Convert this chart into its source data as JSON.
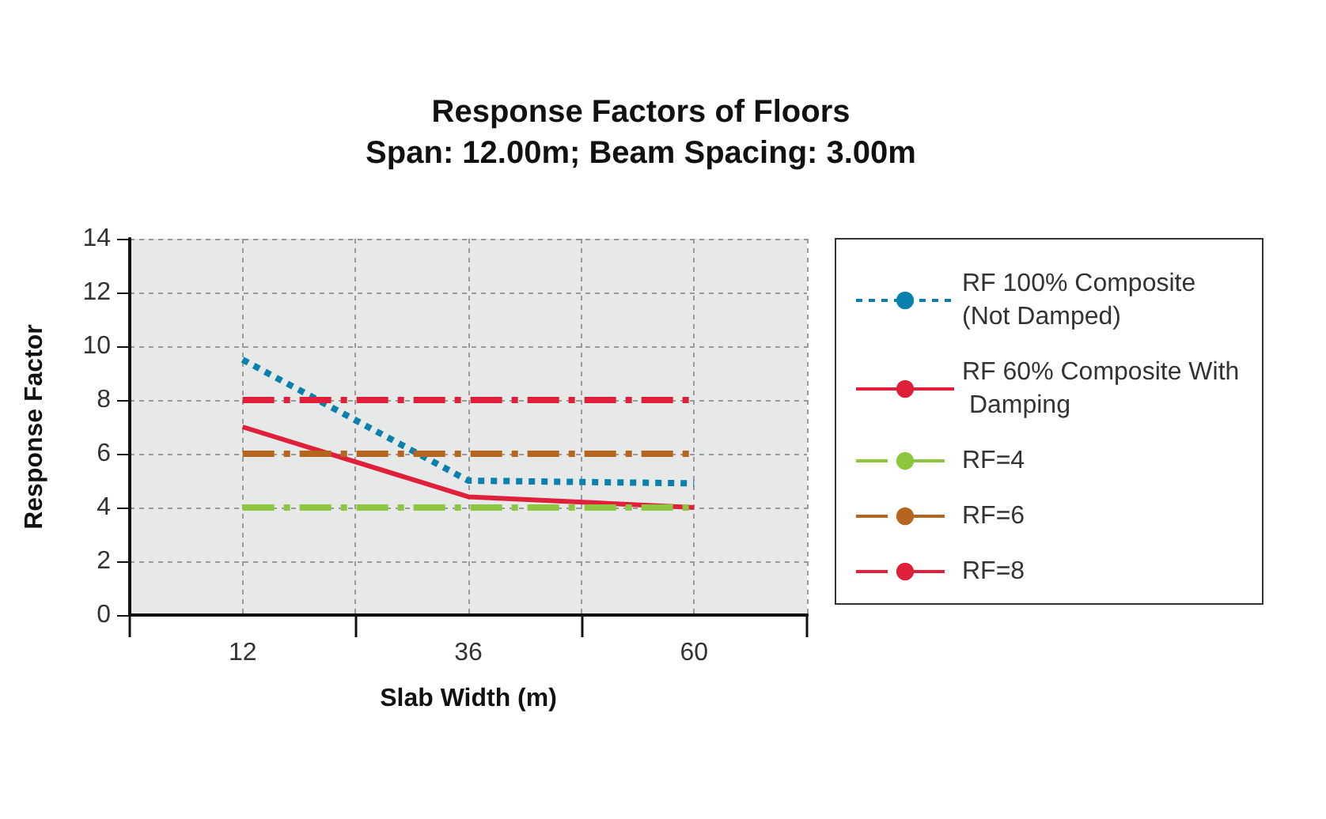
{
  "chart_data": {
    "type": "line",
    "title": "Response Factors of Floors",
    "subtitle": "Span: 12.00m; Beam Spacing: 3.00m",
    "xlabel": "Slab Width (m)",
    "ylabel": "Response Factor",
    "x": [
      12,
      36,
      60
    ],
    "xlim": [
      0,
      72
    ],
    "xticks": [
      {
        "value": 0,
        "label": null
      },
      12,
      {
        "value": 24,
        "label": null
      },
      36,
      {
        "value": 48,
        "label": null
      },
      60,
      {
        "value": 72,
        "label": null
      }
    ],
    "ylim": [
      0,
      14
    ],
    "yticks": [
      0,
      2,
      4,
      6,
      8,
      10,
      12,
      14
    ],
    "grid": true,
    "legend": "right",
    "marker": "none",
    "series": [
      {
        "name": "RF 100% Composite (Not Damped)",
        "color": "#0a80ad",
        "line_style": "dotted",
        "values": [
          9.5,
          5.0,
          4.9
        ]
      },
      {
        "name": "RF 60% Composite With Damping",
        "color": "#e0203a",
        "line_style": "solid",
        "values": [
          7.0,
          4.4,
          4.0
        ]
      },
      {
        "name": "RF=4",
        "color": "#8dc63f",
        "line_style": "dashed",
        "values": [
          4,
          4,
          4
        ]
      },
      {
        "name": "RF=6",
        "color": "#b5651d",
        "line_style": "dashed",
        "values": [
          6,
          6,
          6
        ]
      },
      {
        "name": "RF=8",
        "color": "#e0203a",
        "line_style": "dashed",
        "values": [
          8,
          8,
          8
        ]
      }
    ]
  }
}
